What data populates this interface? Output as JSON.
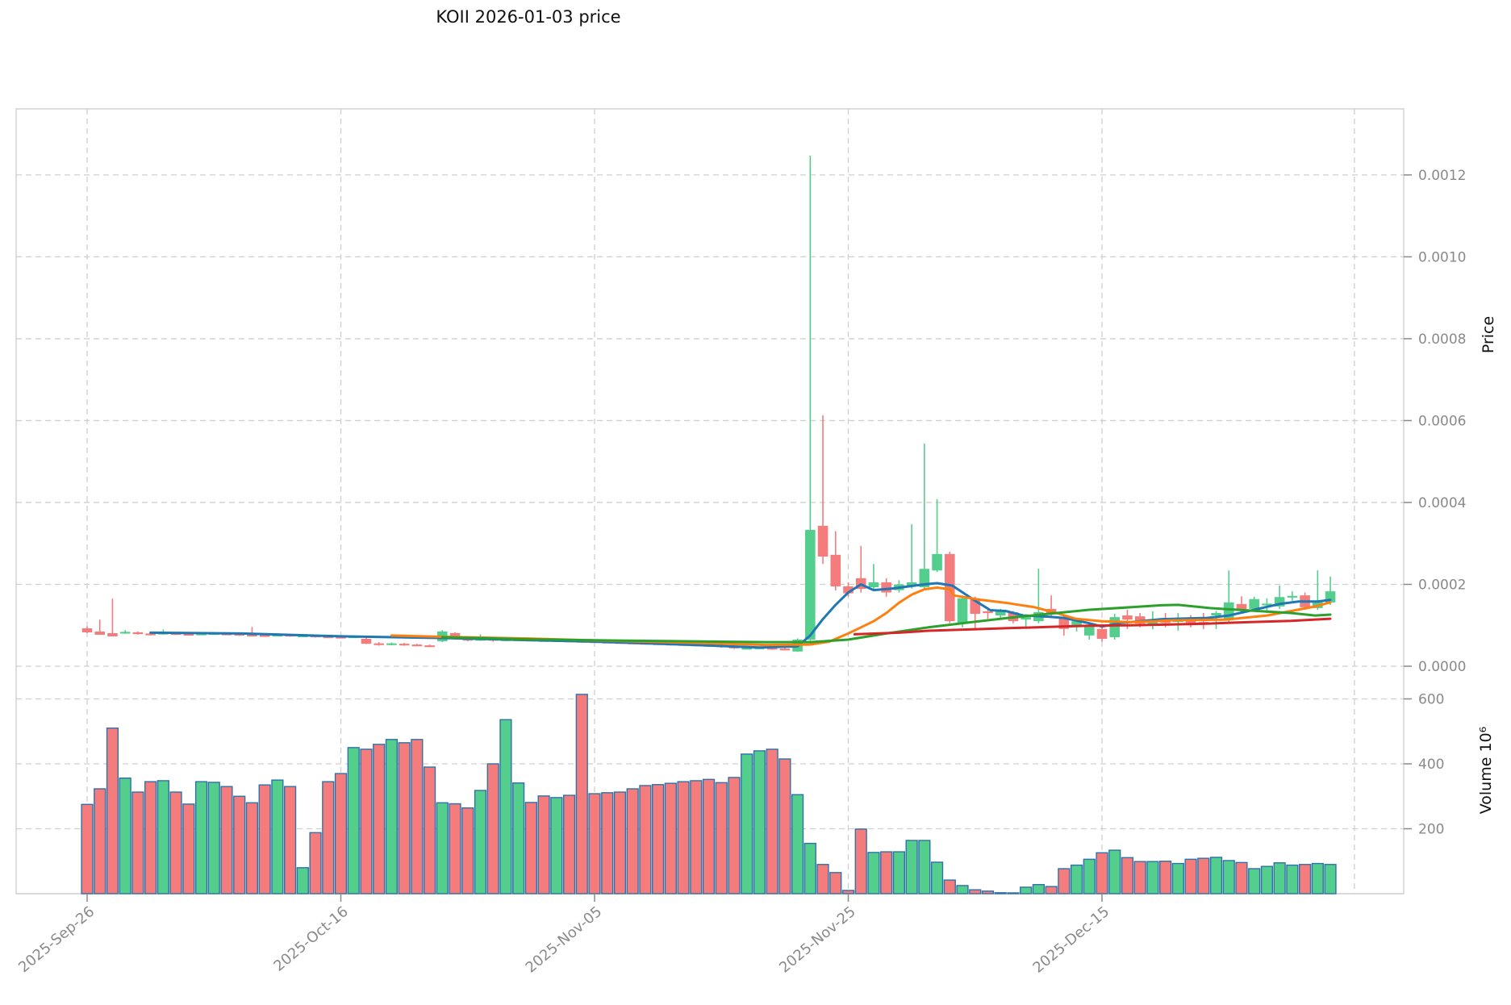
{
  "title": "KOII  2026-01-03  price",
  "chart_data": {
    "type": "candlestick+volume",
    "title": "KOII  2026-01-03  price",
    "price_axis": {
      "label": "Price",
      "tick_labels": [
        "0.0000",
        "0.0002",
        "0.0004",
        "0.0006",
        "0.0008",
        "0.0010",
        "0.0012"
      ],
      "tick_values_micro": [
        0,
        200,
        400,
        600,
        800,
        1000,
        1200
      ],
      "grid": "dashed"
    },
    "volume_axis": {
      "label": "Volume  10⁶",
      "tick_labels": [
        "200",
        "400",
        "600"
      ],
      "tick_values_millions": [
        200,
        400,
        600
      ]
    },
    "x_axis": {
      "tick_labels": [
        "2025-Sep-26",
        "2025-Oct-16",
        "2025-Nov-05",
        "2025-Nov-25",
        "2025-Dec-15"
      ],
      "tick_indices": [
        0,
        20,
        40,
        60,
        80
      ],
      "extra_gridline_index": 99.9,
      "start_date": "2025-09-26",
      "days_per_candle": 1
    },
    "colors": {
      "up": "#53ce8c",
      "down": "#f47c7c",
      "volume_bar_border": "#2f71a8",
      "ma_blue": "#1f77b4",
      "ma_orange": "#ff7f0e",
      "ma_green": "#2ca02c",
      "ma_red": "#d62728",
      "grid": "#cfcfcf",
      "tick_text": "#8a8a8a",
      "frame": "#c9c9c9",
      "title_text": "#111111"
    },
    "price_unit": "1e-6 (values below are micro-price)",
    "volume_unit": "millions",
    "candles_format": [
      "open",
      "high",
      "low",
      "close",
      "volume"
    ],
    "candles": [
      [
        92.6,
        97,
        81,
        82.7,
        275
      ],
      [
        84.7,
        114,
        79,
        76.8,
        323
      ],
      [
        80.8,
        165,
        75,
        72.9,
        510
      ],
      [
        83,
        88,
        79,
        84,
        356
      ],
      [
        83,
        85,
        77,
        79,
        313
      ],
      [
        80,
        82,
        75,
        77,
        345
      ],
      [
        78,
        90,
        77,
        82,
        348
      ],
      [
        81,
        83,
        76,
        78,
        313
      ],
      [
        79,
        81,
        75,
        77,
        276
      ],
      [
        77,
        82,
        76,
        80,
        345
      ],
      [
        79,
        83,
        77,
        81,
        343
      ],
      [
        80,
        82,
        76,
        78,
        330
      ],
      [
        79,
        80,
        74,
        76,
        300
      ],
      [
        77,
        96,
        73,
        75,
        280
      ],
      [
        76,
        78,
        72,
        74,
        335
      ],
      [
        74,
        79,
        73,
        77,
        350
      ],
      [
        77,
        78,
        72,
        74,
        330
      ],
      [
        73,
        77,
        72,
        75,
        80
      ],
      [
        75,
        76,
        70,
        72,
        188
      ],
      [
        73,
        75,
        69,
        70,
        345
      ],
      [
        72,
        74,
        68,
        70,
        370
      ],
      [
        70,
        75,
        69,
        73,
        450
      ],
      [
        67,
        72,
        54,
        55,
        445
      ],
      [
        56,
        59,
        50,
        52,
        460
      ],
      [
        53,
        58,
        51,
        56,
        475
      ],
      [
        55,
        57,
        50,
        52,
        465
      ],
      [
        53,
        55,
        49,
        50,
        475
      ],
      [
        51,
        53,
        48,
        49,
        390
      ],
      [
        61,
        88,
        59,
        85,
        280
      ],
      [
        81,
        83,
        65,
        67,
        277
      ],
      [
        67,
        69,
        61,
        63,
        264
      ],
      [
        63,
        78,
        62,
        67,
        318
      ],
      [
        67,
        69,
        60,
        63,
        400
      ],
      [
        63,
        68,
        61,
        66,
        536
      ],
      [
        64,
        68,
        62,
        66,
        341
      ],
      [
        65,
        67,
        61,
        63,
        281
      ],
      [
        64,
        66,
        60,
        62,
        301
      ],
      [
        62,
        66,
        60,
        64,
        296
      ],
      [
        63,
        65,
        59,
        61,
        303
      ],
      [
        62,
        64,
        58,
        60,
        614
      ],
      [
        61,
        63,
        57,
        59,
        308
      ],
      [
        60,
        62,
        56,
        58,
        311
      ],
      [
        59,
        61,
        55,
        57,
        313
      ],
      [
        58,
        60,
        54,
        56,
        323
      ],
      [
        57,
        59,
        53,
        55,
        333
      ],
      [
        56,
        58,
        52,
        54,
        336
      ],
      [
        55,
        57,
        51,
        53,
        340
      ],
      [
        54,
        56,
        50,
        52,
        345
      ],
      [
        53,
        55,
        49,
        51,
        348
      ],
      [
        52,
        54,
        48,
        50,
        352
      ],
      [
        51,
        53,
        45,
        47,
        342
      ],
      [
        48,
        50,
        42,
        44,
        358
      ],
      [
        43,
        47,
        41,
        45,
        430
      ],
      [
        44,
        48,
        42,
        46,
        440
      ],
      [
        45,
        47,
        40,
        42,
        445
      ],
      [
        43,
        45,
        39,
        40,
        415
      ],
      [
        36,
        68,
        35,
        65,
        305
      ],
      [
        65,
        1247,
        62,
        333,
        155
      ],
      [
        343,
        613,
        250,
        268,
        90
      ],
      [
        272,
        330,
        185,
        195,
        65
      ],
      [
        195,
        205,
        170,
        178,
        10
      ],
      [
        215,
        294,
        180,
        189,
        199
      ],
      [
        193,
        250,
        188,
        205,
        127
      ],
      [
        205,
        215,
        170,
        180,
        129
      ],
      [
        186,
        210,
        180,
        200,
        129
      ],
      [
        195,
        347,
        190,
        205,
        164
      ],
      [
        193,
        544,
        190,
        238,
        164
      ],
      [
        234,
        408,
        230,
        274,
        97
      ],
      [
        274,
        280,
        105,
        110,
        42
      ],
      [
        104,
        173,
        95,
        166,
        25
      ],
      [
        166,
        170,
        90,
        128,
        12
      ],
      [
        134,
        144,
        116,
        130,
        8
      ],
      [
        124,
        140,
        118,
        136,
        3
      ],
      [
        132,
        135,
        105,
        110,
        2
      ],
      [
        114,
        125,
        95,
        120,
        20
      ],
      [
        110,
        238,
        105,
        132,
        28
      ],
      [
        140,
        173,
        120,
        130,
        22
      ],
      [
        118,
        125,
        75,
        91,
        77
      ],
      [
        100,
        115,
        85,
        110,
        88
      ],
      [
        75,
        105,
        65,
        99,
        106
      ],
      [
        91,
        95,
        60,
        67,
        126
      ],
      [
        71,
        128,
        65,
        120,
        134
      ],
      [
        124,
        138,
        91,
        114,
        111
      ],
      [
        122,
        130,
        95,
        104,
        99
      ],
      [
        99,
        134,
        90,
        110,
        99
      ],
      [
        116,
        130,
        95,
        106,
        100
      ],
      [
        108,
        130,
        87,
        118,
        93
      ],
      [
        118,
        125,
        95,
        106,
        106
      ],
      [
        108,
        130,
        91,
        106,
        109
      ],
      [
        124,
        135,
        91,
        130,
        112
      ],
      [
        116,
        234,
        105,
        156,
        102
      ],
      [
        152,
        171,
        130,
        138,
        96
      ],
      [
        140,
        170,
        135,
        164,
        77
      ],
      [
        150,
        166,
        130,
        153,
        84
      ],
      [
        146,
        197,
        140,
        169,
        95
      ],
      [
        170,
        183,
        160,
        172,
        88
      ],
      [
        173,
        180,
        138,
        144,
        90
      ],
      [
        142,
        234,
        138,
        160,
        93
      ],
      [
        156,
        219,
        150,
        183,
        90
      ]
    ],
    "moving_averages": [
      {
        "name": "ma_blue",
        "color": "#1f77b4",
        "points": [
          [
            5,
            82
          ],
          [
            12.2,
            80
          ],
          [
            20,
            73
          ],
          [
            28,
            69
          ],
          [
            34.5,
            64
          ],
          [
            40,
            60
          ],
          [
            47,
            53
          ],
          [
            53,
            46
          ],
          [
            56,
            48.5
          ],
          [
            57,
            75
          ],
          [
            58,
            115
          ],
          [
            59,
            150
          ],
          [
            60,
            180
          ],
          [
            61,
            200
          ],
          [
            62,
            186
          ],
          [
            63.5,
            190
          ],
          [
            65,
            196
          ],
          [
            66,
            200
          ],
          [
            67,
            203
          ],
          [
            68.2,
            197
          ],
          [
            70,
            160
          ],
          [
            71.2,
            137
          ],
          [
            72.4,
            135
          ],
          [
            73.8,
            124
          ],
          [
            75.8,
            121
          ],
          [
            77,
            118
          ],
          [
            79,
            105
          ],
          [
            80,
            97
          ],
          [
            81.5,
            106
          ],
          [
            83,
            110
          ],
          [
            84.7,
            115
          ],
          [
            87,
            117
          ],
          [
            88.3,
            118
          ],
          [
            90,
            124
          ],
          [
            92,
            138
          ],
          [
            94,
            152
          ],
          [
            95.5,
            158
          ],
          [
            97,
            158
          ],
          [
            98,
            162
          ]
        ]
      },
      {
        "name": "ma_orange",
        "color": "#ff7f0e",
        "points": [
          [
            24,
            75
          ],
          [
            28,
            72
          ],
          [
            34.5,
            68
          ],
          [
            40,
            63
          ],
          [
            47,
            58
          ],
          [
            53.5,
            52
          ],
          [
            57,
            53
          ],
          [
            58.5,
            60
          ],
          [
            60,
            80
          ],
          [
            61,
            95
          ],
          [
            62,
            110
          ],
          [
            63,
            130
          ],
          [
            64,
            155
          ],
          [
            65,
            175
          ],
          [
            66,
            188
          ],
          [
            67,
            192
          ],
          [
            68,
            188
          ],
          [
            68.3,
            173
          ],
          [
            70.5,
            162
          ],
          [
            72.6,
            154
          ],
          [
            74.7,
            144
          ],
          [
            76.4,
            130
          ],
          [
            77.9,
            116
          ],
          [
            80,
            110
          ],
          [
            82.2,
            108
          ],
          [
            84.1,
            110
          ],
          [
            85.3,
            112
          ],
          [
            89.8,
            114
          ],
          [
            93,
            124
          ],
          [
            95.1,
            136
          ],
          [
            96.8,
            146
          ],
          [
            98,
            156
          ]
        ]
      },
      {
        "name": "ma_green",
        "color": "#2ca02c",
        "points": [
          [
            28,
            71
          ],
          [
            34.5,
            66
          ],
          [
            40,
            63.5
          ],
          [
            47,
            61
          ],
          [
            53.5,
            59
          ],
          [
            57,
            59
          ],
          [
            60,
            65
          ],
          [
            63,
            80
          ],
          [
            66.3,
            95
          ],
          [
            69.5,
            107
          ],
          [
            72.6,
            118
          ],
          [
            75.8,
            128
          ],
          [
            79,
            138
          ],
          [
            82.2,
            144
          ],
          [
            84.7,
            149
          ],
          [
            86,
            150
          ],
          [
            88.5,
            142
          ],
          [
            91.7,
            136
          ],
          [
            94.9,
            130
          ],
          [
            96.8,
            124
          ],
          [
            98,
            126
          ]
        ]
      },
      {
        "name": "ma_red",
        "color": "#d62728",
        "points": [
          [
            60.5,
            78
          ],
          [
            64,
            82
          ],
          [
            66.3,
            86.7
          ],
          [
            69.8,
            90
          ],
          [
            72.6,
            93
          ],
          [
            75.8,
            96
          ],
          [
            79,
            99
          ],
          [
            82.2,
            100
          ],
          [
            85.3,
            102
          ],
          [
            88.2,
            104
          ],
          [
            91.7,
            108
          ],
          [
            94.9,
            111
          ],
          [
            98,
            116
          ]
        ]
      }
    ]
  }
}
